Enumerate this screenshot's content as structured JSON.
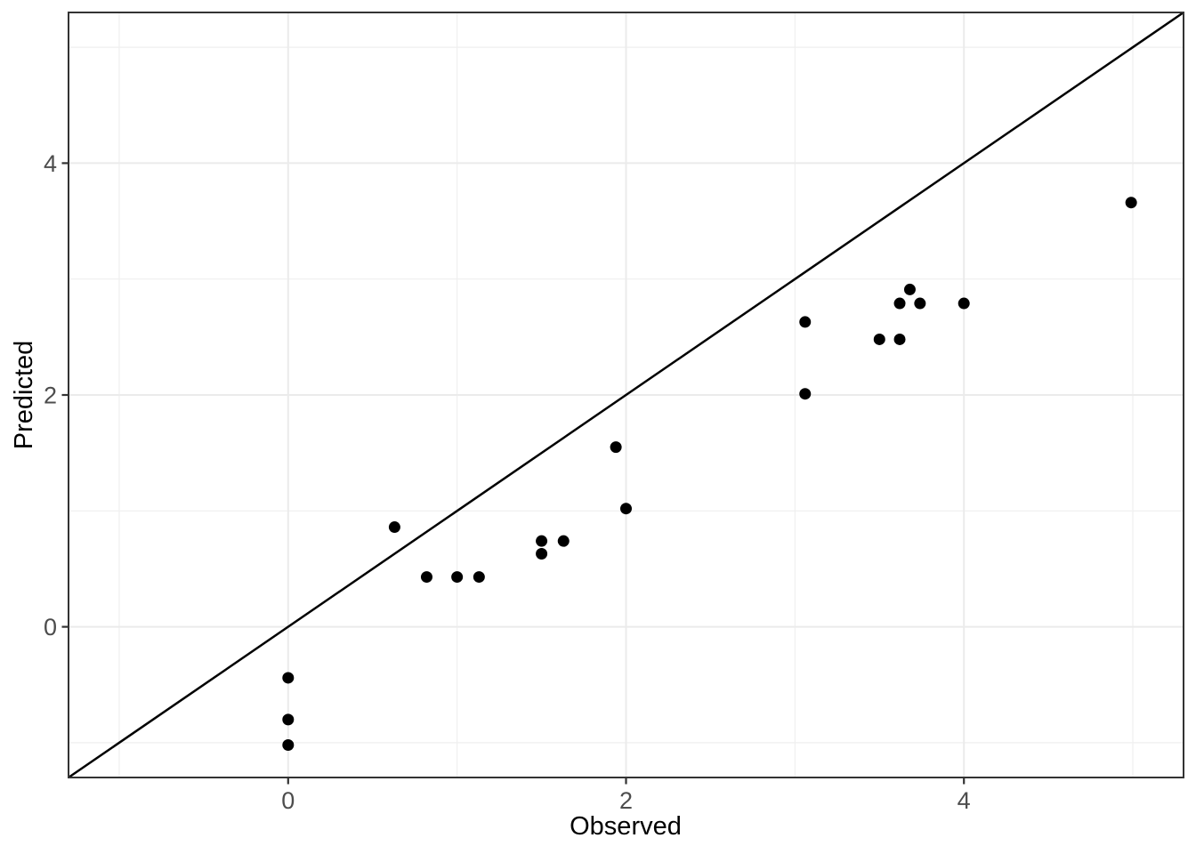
{
  "chart_data": {
    "type": "scatter",
    "title": "",
    "xlabel": "Observed",
    "ylabel": "Predicted",
    "xlim": [
      -1.3,
      5.3
    ],
    "ylim": [
      -1.3,
      5.3
    ],
    "x_major_ticks": [
      0,
      2,
      4
    ],
    "x_tick_labels": [
      "0",
      "2",
      "4"
    ],
    "y_major_ticks": [
      0,
      2,
      4
    ],
    "y_tick_labels": [
      "0",
      "2",
      "4"
    ],
    "x_minor_ticks": [
      -1,
      1,
      3,
      5
    ],
    "y_minor_ticks": [
      -1,
      1,
      3,
      5
    ],
    "grid": "major+minor",
    "legend": "none",
    "identity_line": {
      "slope": 1,
      "intercept": 0
    },
    "points": [
      {
        "x": 0.0,
        "y": -0.44
      },
      {
        "x": 0.0,
        "y": -0.8
      },
      {
        "x": 0.0,
        "y": -1.02
      },
      {
        "x": 0.63,
        "y": 0.86
      },
      {
        "x": 0.82,
        "y": 0.43
      },
      {
        "x": 1.0,
        "y": 0.43
      },
      {
        "x": 1.13,
        "y": 0.43
      },
      {
        "x": 1.5,
        "y": 0.74
      },
      {
        "x": 1.5,
        "y": 0.63
      },
      {
        "x": 1.63,
        "y": 0.74
      },
      {
        "x": 1.94,
        "y": 1.55
      },
      {
        "x": 2.0,
        "y": 1.02
      },
      {
        "x": 3.06,
        "y": 2.63
      },
      {
        "x": 3.06,
        "y": 2.01
      },
      {
        "x": 3.5,
        "y": 2.48
      },
      {
        "x": 3.62,
        "y": 2.48
      },
      {
        "x": 3.62,
        "y": 2.79
      },
      {
        "x": 3.68,
        "y": 2.91
      },
      {
        "x": 3.74,
        "y": 2.79
      },
      {
        "x": 4.0,
        "y": 2.79
      },
      {
        "x": 4.99,
        "y": 3.66
      }
    ],
    "colors": {
      "point": "#000000",
      "identity_line": "#000000",
      "grid_major": "#EBEBEB",
      "grid_minor": "#EFEFEF",
      "panel_border": "#333333",
      "tick_mark": "#333333",
      "tick_label": "#4D4D4D",
      "axis_title": "#000000",
      "panel_background": "#FFFFFF",
      "figure_background": "#FFFFFF"
    }
  }
}
